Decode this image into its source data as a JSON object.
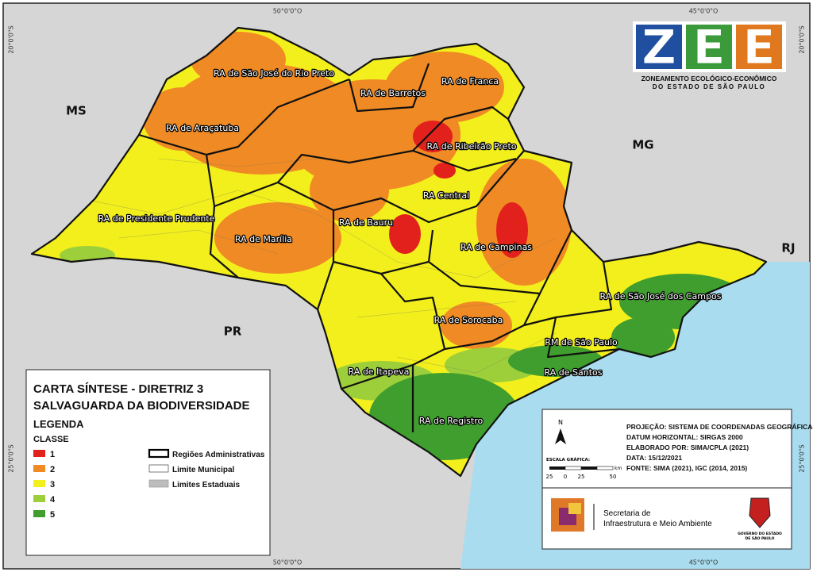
{
  "graticule": {
    "lon_top": [
      "50°0'0\"O",
      "45°0'0\"O"
    ],
    "lon_bottom": [
      "50°0'0\"O",
      "45°0'0\"O"
    ],
    "lat_left": [
      "20°0'0\"S",
      "25°0'0\"S"
    ],
    "lat_right": [
      "20°0'0\"S",
      "25°0'0\"S"
    ]
  },
  "neighbors": [
    "MS",
    "MG",
    "RJ",
    "PR"
  ],
  "regions": [
    "RA de São José do Rio Preto",
    "RA de Barretos",
    "RA de Franca",
    "RA de Araçatuba",
    "RA de Ribeirão Preto",
    "RA Central",
    "RA de Presidente Prudente",
    "RA de Marília",
    "RA de Bauru",
    "RA de Campinas",
    "RA de São José dos Campos",
    "RA de Sorocaba",
    "RM de São Paulo",
    "RA de Itapeva",
    "RA de Santos",
    "RA de Registro"
  ],
  "logo": {
    "letters": [
      {
        "text": "Z",
        "color": "#1f4f9e"
      },
      {
        "text": "E",
        "color": "#3b9a3a"
      },
      {
        "text": "E",
        "color": "#e0781f"
      }
    ],
    "title": "ZONEAMENTO ECOLÓGICO-ECONÔMICO",
    "subtitle": "DO ESTADO DE SÃO PAULO"
  },
  "legend": {
    "title": [
      "CARTA SÍNTESE - DIRETRIZ 3",
      "SALVAGUARDA DA BIODIVERSIDADE"
    ],
    "heading": "LEGENDA",
    "class_heading": "CLASSE",
    "classes": [
      {
        "label": "1",
        "color": "#e3211c"
      },
      {
        "label": "2",
        "color": "#f08a24"
      },
      {
        "label": "3",
        "color": "#f2ef1c"
      },
      {
        "label": "4",
        "color": "#9dcf3a"
      },
      {
        "label": "5",
        "color": "#3f9e2e"
      }
    ],
    "lines": [
      "Regiões Administrativas",
      "Limite Municipal",
      "Limites Estaduais"
    ]
  },
  "info": {
    "lines": [
      "PROJEÇÃO: SISTEMA DE COORDENADAS GEOGRÁFICAS",
      "DATUM HORIZONTAL: SIRGAS 2000",
      "ELABORADO POR: SIMA/CPLA (2021)",
      "DATA: 15/12/2021",
      "FONTE: SIMA (2021), IGC (2014, 2015)"
    ],
    "north": "N",
    "scale_title": "ESCALA GRÁFICA:",
    "scale_ticks": [
      25,
      0,
      25,
      50
    ],
    "scale_unit": "km"
  },
  "secretaria": [
    "Secretaria de",
    "Infraestrutura e Meio Ambiente"
  ],
  "government": [
    "GOVERNO DO ESTADO",
    "DE SÃO PAULO"
  ]
}
